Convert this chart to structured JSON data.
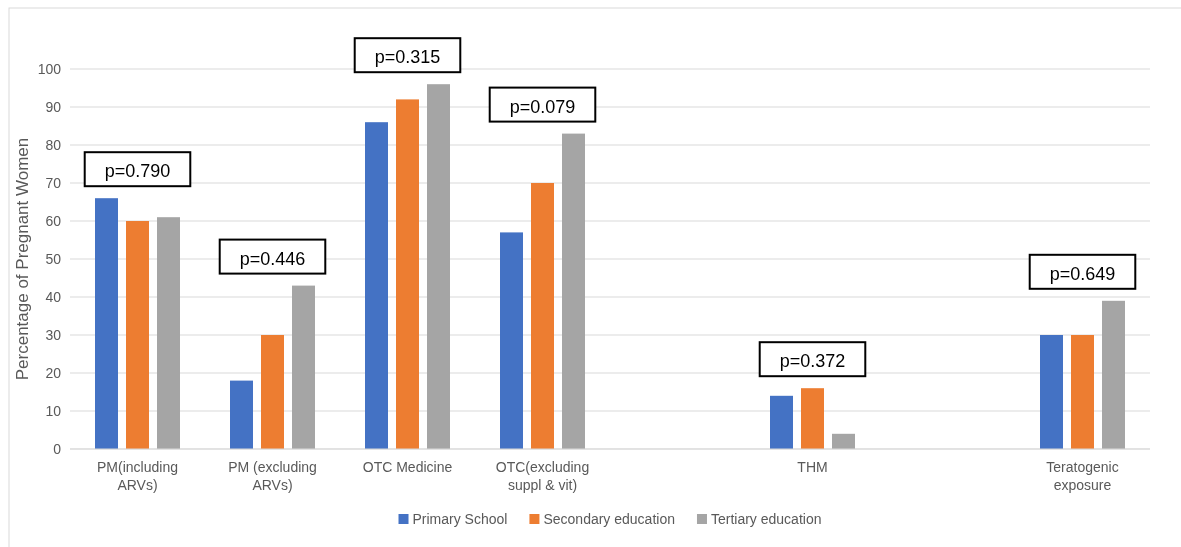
{
  "chart_data": {
    "type": "bar",
    "categories": [
      "PM(including ARVs)",
      "PM (excluding ARVs)",
      "OTC Medicine",
      "OTC(excluding suppl & vit)",
      null,
      "THM",
      null,
      "Teratogenic exposure"
    ],
    "series": [
      {
        "name": "Primary School",
        "color": "#4472c4",
        "values": [
          66,
          18,
          86,
          57,
          null,
          14,
          null,
          30
        ]
      },
      {
        "name": "Secondary education",
        "color": "#ed7d31",
        "values": [
          60,
          30,
          92,
          70,
          null,
          16,
          null,
          30
        ]
      },
      {
        "name": "Tertiary education",
        "color": "#a5a5a5",
        "values": [
          61,
          43,
          96,
          83,
          null,
          4,
          null,
          39
        ]
      }
    ],
    "ylabel": "Percentage of Pregnant Women",
    "ylim": [
      0,
      100
    ],
    "yticks": [
      0,
      10,
      20,
      30,
      40,
      50,
      60,
      70,
      80,
      90,
      100
    ],
    "grid": "y",
    "legend": "bottom",
    "annotations": [
      "p=0.790",
      "p=0.446",
      "p=0.315",
      "p=0.079",
      "p=0.372",
      "p=0.649"
    ]
  }
}
